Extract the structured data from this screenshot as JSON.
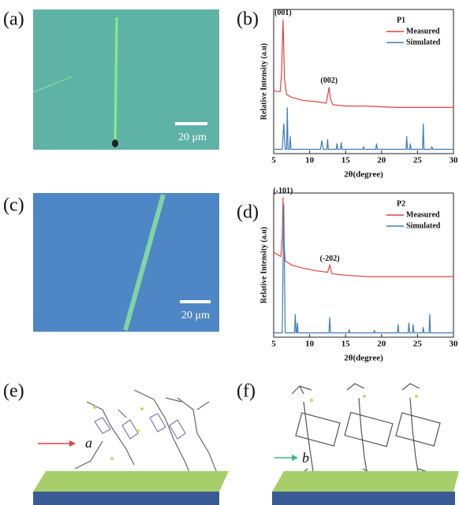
{
  "images": [
    {
      "label": "(a)",
      "scale_bar": "20 μm"
    },
    {
      "label": "(c)",
      "scale_bar": "20 μm"
    }
  ],
  "structures": [
    {
      "label": "(e)",
      "axis": "a"
    },
    {
      "label": "(f)",
      "axis": "b"
    }
  ],
  "chart_data": [
    {
      "type": "line",
      "label": "(b)",
      "legend_title": "P1",
      "y_label": "Relative Intensity (a.u)",
      "x_label": "2θ(degree)",
      "xlim": [
        5,
        30
      ],
      "xticks": [
        5,
        10,
        15,
        20,
        25,
        30
      ],
      "ylim": [
        0,
        100
      ],
      "annotations": [
        {
          "text": "(001)",
          "x": 6.3
        },
        {
          "text": "(002)",
          "x": 12.7
        }
      ],
      "series": [
        {
          "name": "Measured",
          "color": "#e8413a",
          "x": [
            5,
            5.5,
            5.9,
            6.1,
            6.3,
            6.5,
            6.8,
            7.5,
            9,
            11,
            12.3,
            12.5,
            12.7,
            12.9,
            13.2,
            15,
            18,
            22,
            26,
            30
          ],
          "values": [
            44,
            43,
            43,
            55,
            93,
            52,
            41,
            39,
            37,
            36,
            35,
            40,
            46,
            38,
            34,
            33,
            33,
            32,
            32,
            32
          ]
        },
        {
          "name": "Simulated",
          "color": "#3e7cb8",
          "x": [
            5,
            6.2,
            6.4,
            6.6,
            6.8,
            6.9,
            7.0,
            7.2,
            7.3,
            7.4,
            11.5,
            11.7,
            11.9,
            12.4,
            12.5,
            12.6,
            13.7,
            13.8,
            13.9,
            14.3,
            14.4,
            14.5,
            17.4,
            17.5,
            17.6,
            19.2,
            19.3,
            19.4,
            23.4,
            23.5,
            23.6,
            23.9,
            24.0,
            24.1,
            25.7,
            25.8,
            25.9,
            26.9,
            27.0,
            27.1,
            30
          ],
          "values": [
            3,
            3,
            21,
            3,
            3,
            32,
            3,
            3,
            12,
            3,
            3,
            9,
            3,
            3,
            10,
            3,
            3,
            7,
            3,
            3,
            8,
            3,
            3,
            5,
            3,
            3,
            7,
            3,
            3,
            12,
            3,
            3,
            7,
            3,
            3,
            21,
            3,
            3,
            5,
            3,
            3
          ]
        }
      ]
    },
    {
      "type": "line",
      "label": "(d)",
      "legend_title": "P2",
      "y_label": "Relative Intensity (a.u)",
      "x_label": "2θ(degree)",
      "xlim": [
        5,
        30
      ],
      "xticks": [
        5,
        10,
        15,
        20,
        25,
        30
      ],
      "ylim": [
        0,
        100
      ],
      "annotations": [
        {
          "text": "(-101)",
          "x": 6.3
        },
        {
          "text": "(-202)",
          "x": 12.8
        }
      ],
      "series": [
        {
          "name": "Measured",
          "color": "#e8413a",
          "x": [
            5,
            5.6,
            6.0,
            6.2,
            6.3,
            6.4,
            6.6,
            7.5,
            9,
            11,
            12.5,
            12.8,
            13.1,
            15,
            18,
            22,
            26,
            30
          ],
          "values": [
            59,
            57,
            56,
            70,
            97,
            68,
            53,
            50,
            48,
            46,
            45,
            50,
            44,
            43,
            42,
            42,
            42,
            42
          ]
        },
        {
          "name": "Simulated",
          "color": "#3e7cb8",
          "x": [
            5,
            6.2,
            6.4,
            6.6,
            7.9,
            8.0,
            8.1,
            8.2,
            8.3,
            8.4,
            12.7,
            12.8,
            12.9,
            15.4,
            15.5,
            15.6,
            18.9,
            19.0,
            19.1,
            22.2,
            22.3,
            22.4,
            23.7,
            23.8,
            23.9,
            24.3,
            24.4,
            24.5,
            25.7,
            25.8,
            25.9,
            26.6,
            26.7,
            26.8,
            30
          ],
          "values": [
            3,
            3,
            92,
            3,
            3,
            16,
            3,
            3,
            10,
            3,
            3,
            14,
            3,
            3,
            5,
            3,
            3,
            5,
            3,
            3,
            9,
            3,
            3,
            10,
            3,
            3,
            9,
            3,
            3,
            7,
            3,
            3,
            16,
            3,
            3
          ]
        }
      ]
    }
  ]
}
